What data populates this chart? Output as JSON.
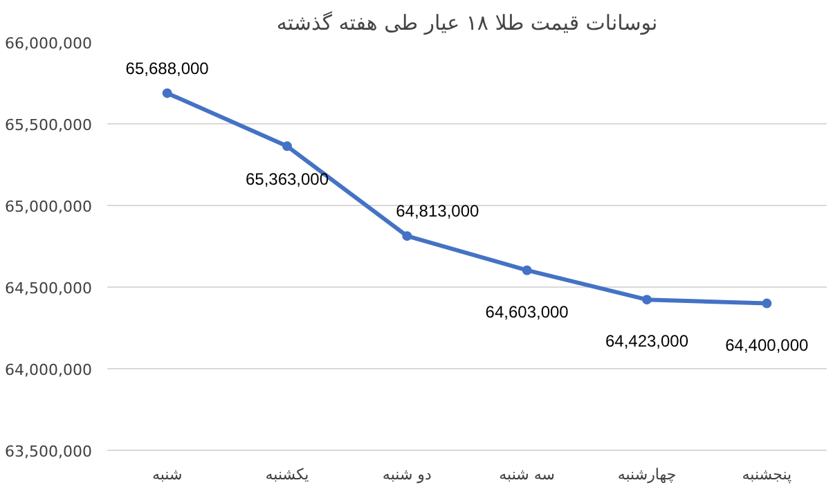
{
  "chart_data": {
    "type": "line",
    "title": "نوسانات قیمت طلا ۱۸ عیار طی هفته گذشته",
    "categories": [
      "شنبه",
      "یکشنبه",
      "دو شنبه",
      "سه شنبه",
      "چهارشنبه",
      "پنجشنبه"
    ],
    "values": [
      65688000,
      65363000,
      64813000,
      64603000,
      64423000,
      64400000
    ],
    "value_labels": [
      "65,688,000",
      "65,363,000",
      "64,813,000",
      "64,603,000",
      "64,423,000",
      "64,400,000"
    ],
    "color": "#4472c4",
    "marker": "circle",
    "grid": "y",
    "ylim": [
      63500000,
      66000000
    ],
    "yticks": [
      {
        "value": 63500000,
        "label": "63,500,000"
      },
      {
        "value": 64000000,
        "label": "64,000,000"
      },
      {
        "value": 64500000,
        "label": "64,500,000"
      },
      {
        "value": 65000000,
        "label": "65,000,000"
      },
      {
        "value": 65500000,
        "label": "65,500,000"
      },
      {
        "value": 66000000,
        "label": "66,000,000"
      }
    ]
  }
}
